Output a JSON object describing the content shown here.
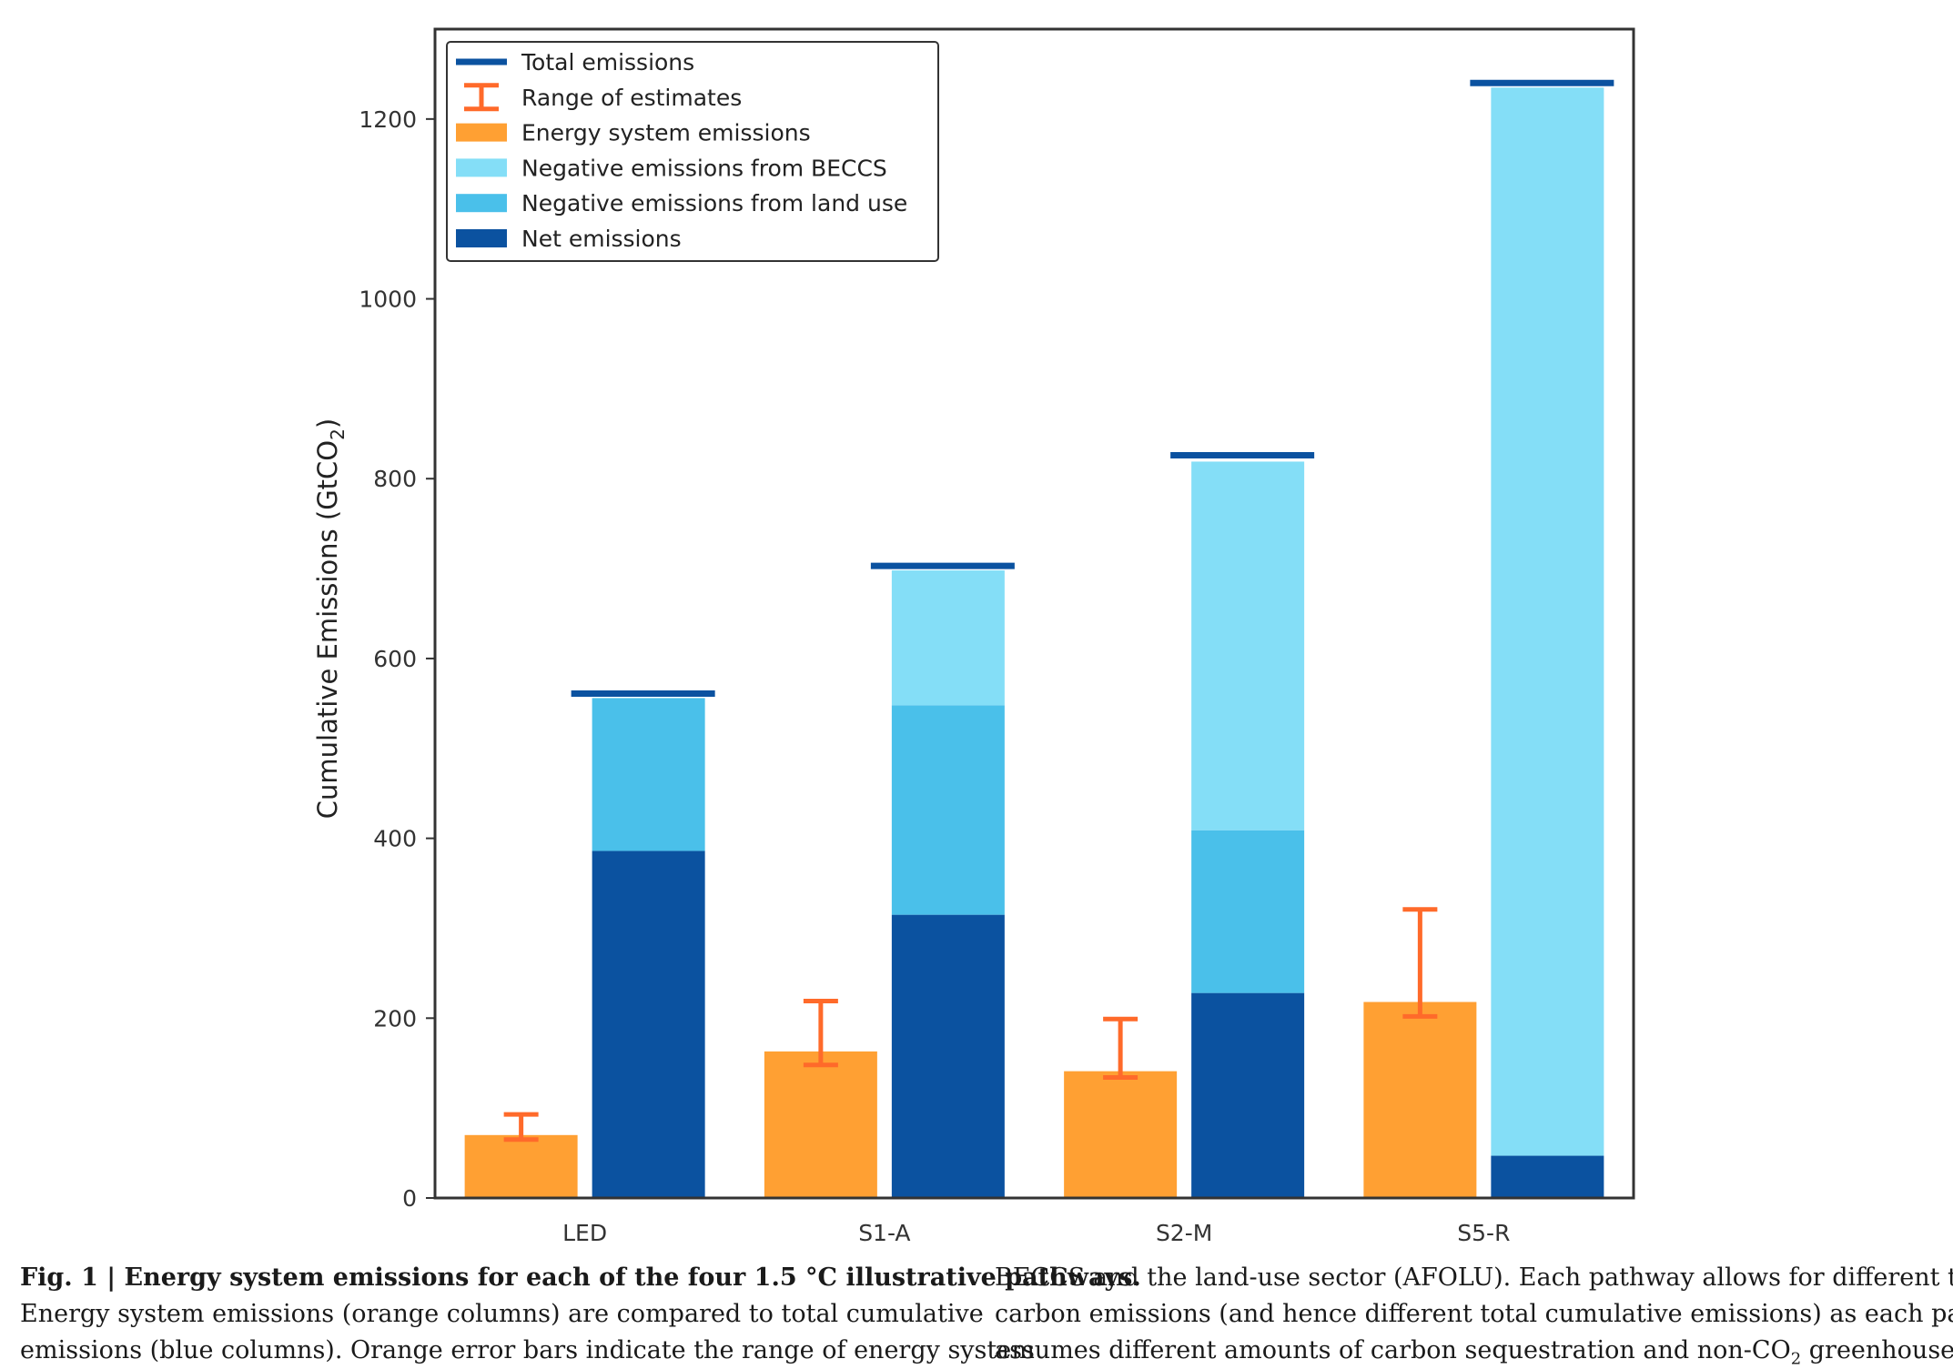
{
  "chart_data": {
    "type": "bar",
    "categories": [
      "LED",
      "S1-A",
      "S2-M",
      "S5-R"
    ],
    "ylabel": "Cumulative Emissions (GtCO",
    "ylabel_sub": "2",
    "ylabel_end": ")",
    "ylim": [
      0,
      1300
    ],
    "yticks": [
      0,
      200,
      400,
      600,
      800,
      1000,
      1200
    ],
    "legend_position": "top-left",
    "legend": [
      {
        "key": "total",
        "label": "Total emissions",
        "marker": "line"
      },
      {
        "key": "range",
        "label": "Range of estimates",
        "marker": "errorbar"
      },
      {
        "key": "energy",
        "label": "Energy system emissions",
        "marker": "patch"
      },
      {
        "key": "beccs",
        "label": "Negative emissions from BECCS",
        "marker": "patch"
      },
      {
        "key": "landuse",
        "label": "Negative emissions from land use",
        "marker": "patch"
      },
      {
        "key": "net",
        "label": "Net emissions",
        "marker": "patch"
      }
    ],
    "series": {
      "energy": {
        "values": [
          70,
          163,
          141,
          218
        ],
        "range_low": [
          65,
          148,
          134,
          202
        ],
        "range_high": [
          93,
          219,
          199,
          321
        ]
      },
      "net": {
        "values": [
          386,
          315,
          228,
          47
        ]
      },
      "landuse": {
        "values": [
          170,
          233,
          181,
          0
        ]
      },
      "beccs": {
        "values": [
          0,
          150,
          410,
          1188
        ]
      },
      "total": {
        "values": [
          561,
          703,
          826,
          1240
        ]
      }
    },
    "colors": {
      "energy": "#FFA033",
      "range": "#FF6A2A",
      "net": "#0B52A0",
      "landuse": "#4AC0EA",
      "beccs": "#84DEF7",
      "total": "#0B52A0",
      "axes": "#333333"
    }
  },
  "caption": {
    "left_title": "Fig. 1 | Energy system emissions for each of the four 1.5 °C illustrative pathways.",
    "left_line2": "Energy system emissions (orange columns) are compared to total cumulative",
    "left_line3": "emissions (blue columns). Orange error bars indicate the range of energy system",
    "right_line1": "BECCS and the land-use sector (AFOLU). Each pathway allows for different total",
    "right_line2": "carbon emissions (and hence different total cumulative emissions) as each pathway",
    "right_line3_a": "assumes different amounts of carbon sequestration and non-CO",
    "right_line3_sub": "2",
    "right_line3_b": " greenhouse gas"
  }
}
